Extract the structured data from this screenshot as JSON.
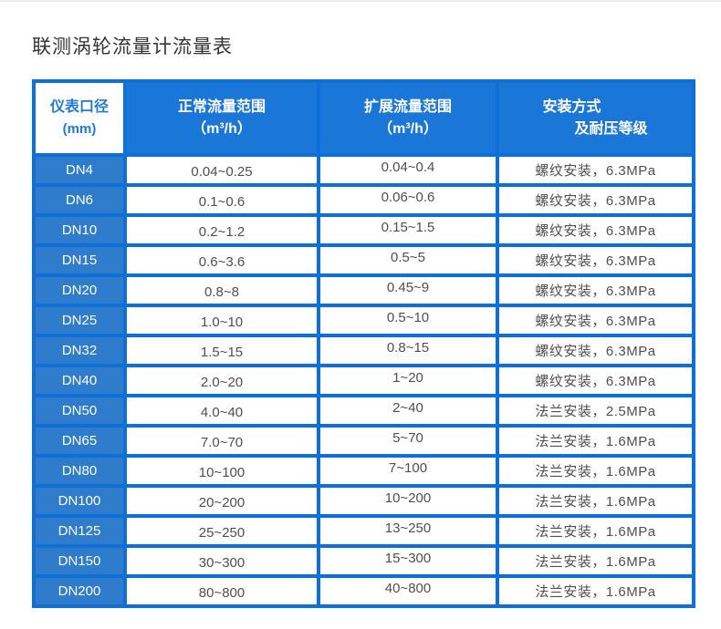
{
  "page_title": "联测涡轮流量计流量表",
  "colors": {
    "table_border": "#0d6fd8",
    "header_bg": "#1a77d8",
    "header_first_bg": "#ffffff",
    "header_first_text": "#1f7ad4",
    "diameter_col_bg": "#2f7ccc",
    "header_text": "#ffffff",
    "cell_text": "#4f4f4f",
    "title_text": "#333333",
    "cell_bg": "#ffffff"
  },
  "table": {
    "columns": [
      {
        "id": "diameter",
        "line1": "仪表口径",
        "line2": "(mm)"
      },
      {
        "id": "normal-range",
        "line1": "正常流量范围",
        "line2": "（m³/h）"
      },
      {
        "id": "extended-range",
        "line1": "扩展流量范围",
        "line2": "（m³/h）"
      },
      {
        "id": "installation",
        "line1": "安装方式",
        "line2": "及耐压等级"
      }
    ],
    "rows": [
      [
        "DN4",
        "0.04~0.25",
        "0.04~0.4",
        "螺纹安装，6.3MPa"
      ],
      [
        "DN6",
        "0.1~0.6",
        "0.06~0.6",
        "螺纹安装，6.3MPa"
      ],
      [
        "DN10",
        "0.2~1.2",
        "0.15~1.5",
        "螺纹安装，6.3MPa"
      ],
      [
        "DN15",
        "0.6~3.6",
        "0.5~5",
        "螺纹安装，6.3MPa"
      ],
      [
        "DN20",
        "0.8~8",
        "0.45~9",
        "螺纹安装，6.3MPa"
      ],
      [
        "DN25",
        "1.0~10",
        "0.5~10",
        "螺纹安装，6.3MPa"
      ],
      [
        "DN32",
        "1.5~15",
        "0.8~15",
        "螺纹安装，6.3MPa"
      ],
      [
        "DN40",
        "2.0~20",
        "1~20",
        "螺纹安装，6.3MPa"
      ],
      [
        "DN50",
        "4.0~40",
        "2~40",
        "法兰安装，2.5MPa"
      ],
      [
        "DN65",
        "7.0~70",
        "5~70",
        "法兰安装，1.6MPa"
      ],
      [
        "DN80",
        "10~100",
        "7~100",
        "法兰安装，1.6MPa"
      ],
      [
        "DN100",
        "20~200",
        "10~200",
        "法兰安装，1.6MPa"
      ],
      [
        "DN125",
        "25~250",
        "13~250",
        "法兰安装，1.6MPa"
      ],
      [
        "DN150",
        "30~300",
        "15~300",
        "法兰安装，1.6MPa"
      ],
      [
        "DN200",
        "80~800",
        "40~800",
        "法兰安装，1.6MPa"
      ]
    ]
  }
}
